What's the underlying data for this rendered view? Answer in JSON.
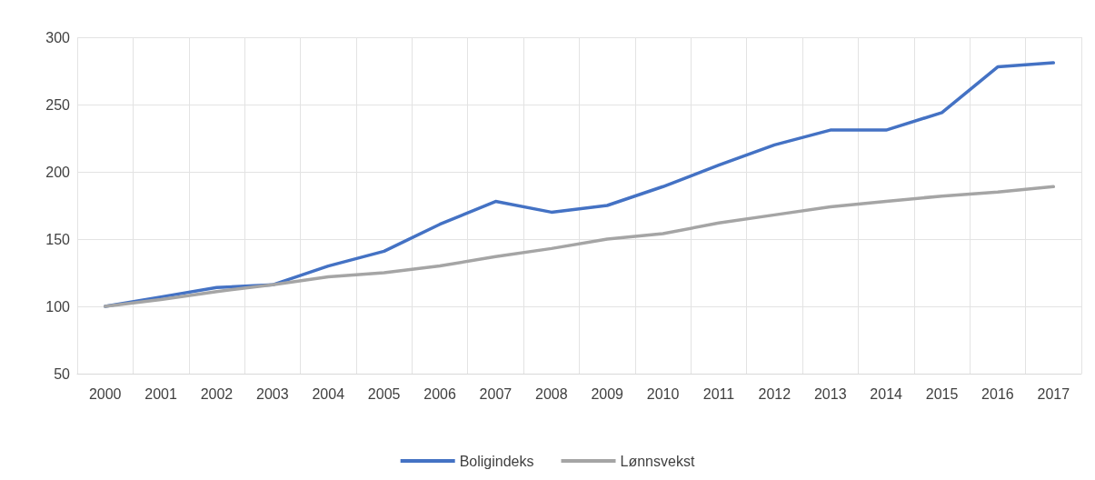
{
  "chart_data": {
    "type": "line",
    "categories": [
      "2000",
      "2001",
      "2002",
      "2003",
      "2004",
      "2005",
      "2006",
      "2007",
      "2008",
      "2009",
      "2010",
      "2011",
      "2012",
      "2013",
      "2014",
      "2015",
      "2016",
      "2017"
    ],
    "series": [
      {
        "name": "Boligindeks",
        "color": "#4472c4",
        "values": [
          100,
          107,
          114,
          116,
          130,
          141,
          161,
          178,
          170,
          175,
          189,
          205,
          220,
          231,
          231,
          244,
          278,
          281
        ]
      },
      {
        "name": "Lønnsvekst",
        "color": "#a5a5a5",
        "values": [
          100,
          105,
          111,
          116,
          122,
          125,
          130,
          137,
          143,
          150,
          154,
          162,
          168,
          174,
          178,
          182,
          185,
          189
        ]
      }
    ],
    "ylim": [
      50,
      300
    ],
    "yticks": [
      50,
      100,
      150,
      200,
      250,
      300
    ],
    "grid": true,
    "legend": "bottom",
    "marker": "none",
    "line_style": "solid"
  }
}
